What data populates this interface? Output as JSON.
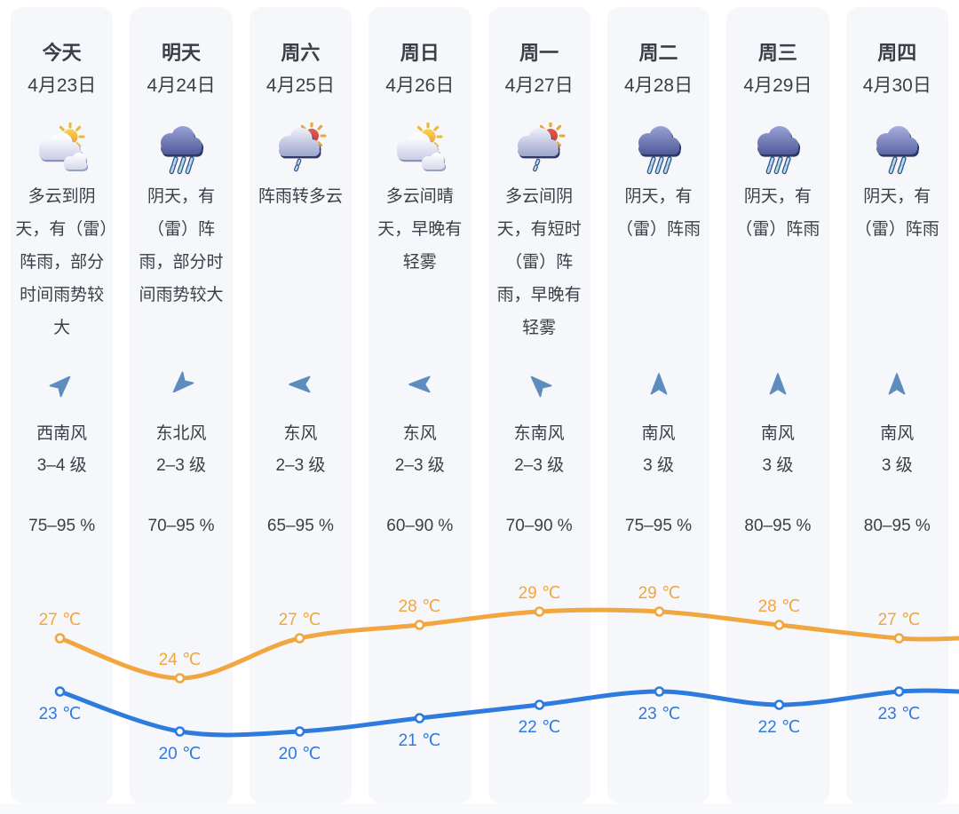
{
  "colors": {
    "high_line": "#F2A640",
    "low_line": "#2E7BE0",
    "wind_arrow": "#5E8CBE",
    "card_background": "#F6F7FA",
    "text_dark": "#3B3E47"
  },
  "days": [
    {
      "name": "今天",
      "date": "4月23日",
      "icon": "sun-behind-clouds",
      "desc": "多云到阴天，有（雷）阵雨，部分时间雨势较大",
      "wind_dir": "西南风",
      "wind_level": "3–4 级",
      "wind_arrow_deg": 45,
      "humidity": "75–95 %",
      "high": 27,
      "low": 23
    },
    {
      "name": "明天",
      "date": "4月24日",
      "icon": "heavy-rain-cloud",
      "desc": "阴天，有（雷）阵雨，部分时间雨势较大",
      "wind_dir": "东北风",
      "wind_level": "2–3 级",
      "wind_arrow_deg": 225,
      "humidity": "70–95 %",
      "high": 24,
      "low": 20
    },
    {
      "name": "周六",
      "date": "4月25日",
      "icon": "sun-cloud-drizzle",
      "desc": "阵雨转多云",
      "wind_dir": "东风",
      "wind_level": "2–3 级",
      "wind_arrow_deg": 270,
      "humidity": "65–95 %",
      "high": 27,
      "low": 20
    },
    {
      "name": "周日",
      "date": "4月26日",
      "icon": "sun-behind-clouds",
      "desc": "多云间晴天，早晚有轻雾",
      "wind_dir": "东风",
      "wind_level": "2–3 级",
      "wind_arrow_deg": 270,
      "humidity": "60–90 %",
      "high": 28,
      "low": 21
    },
    {
      "name": "周一",
      "date": "4月27日",
      "icon": "sun-cloud-drizzle",
      "desc": "多云间阴天，有短时（雷）阵雨，早晚有轻雾",
      "wind_dir": "东南风",
      "wind_level": "2–3 级",
      "wind_arrow_deg": 315,
      "humidity": "70–90 %",
      "high": 29,
      "low": 22
    },
    {
      "name": "周二",
      "date": "4月28日",
      "icon": "heavy-rain-cloud",
      "desc": "阴天，有（雷）阵雨",
      "wind_dir": "南风",
      "wind_level": "3 级",
      "wind_arrow_deg": 0,
      "humidity": "75–95 %",
      "high": 29,
      "low": 23
    },
    {
      "name": "周三",
      "date": "4月29日",
      "icon": "heavy-rain-cloud",
      "desc": "阴天，有（雷）阵雨",
      "wind_dir": "南风",
      "wind_level": "3 级",
      "wind_arrow_deg": 0,
      "humidity": "80–95 %",
      "high": 28,
      "low": 22
    },
    {
      "name": "周四",
      "date": "4月30日",
      "icon": "light-rain-cloud",
      "desc": "阴天，有（雷）阵雨",
      "wind_dir": "南风",
      "wind_level": "3 级",
      "wind_arrow_deg": 0,
      "humidity": "80–95 %",
      "high": 27,
      "low": 23
    }
  ],
  "chart_data": {
    "type": "line",
    "categories": [
      "4月23日",
      "4月24日",
      "4月25日",
      "4月26日",
      "4月27日",
      "4月28日",
      "4月29日",
      "4月30日"
    ],
    "unit": "℃",
    "series": [
      {
        "name": "high",
        "values": [
          27,
          24,
          27,
          28,
          29,
          29,
          28,
          27
        ],
        "color": "#F2A640"
      },
      {
        "name": "low",
        "values": [
          23,
          20,
          20,
          21,
          22,
          23,
          22,
          23
        ],
        "color": "#2E7BE0"
      }
    ],
    "ylim": [
      19,
      30
    ],
    "grid": false,
    "legend": "none",
    "point_labels": true
  }
}
